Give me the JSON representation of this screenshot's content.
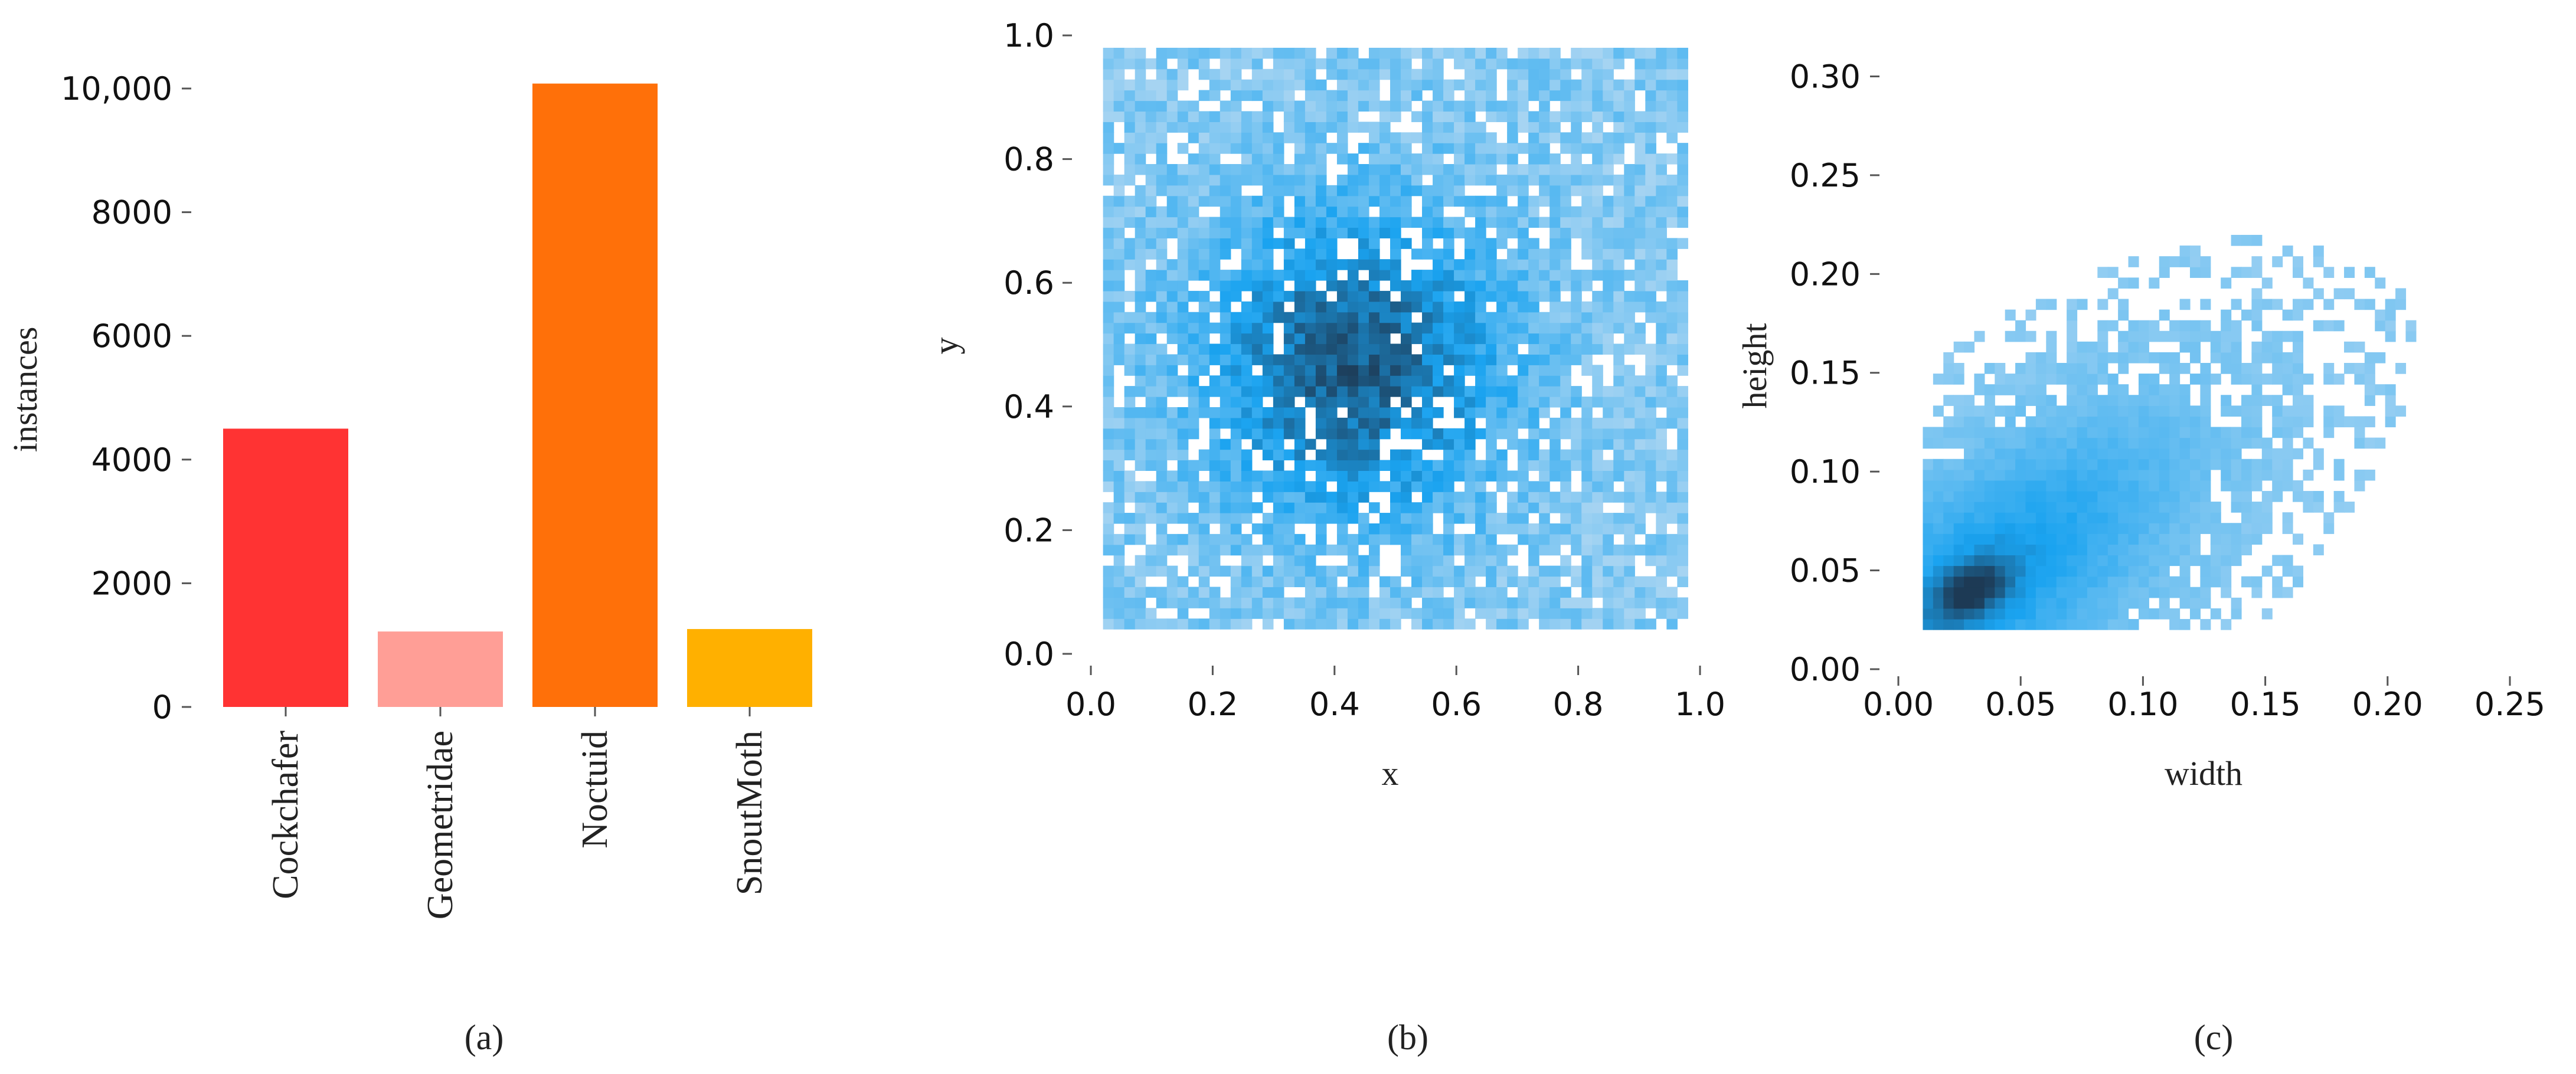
{
  "figure": {
    "captions": [
      "(a)",
      "(b)",
      "(c)"
    ]
  },
  "chart_data": [
    {
      "type": "bar",
      "categories": [
        "Cockchafer",
        "Geometridae",
        "Noctuid",
        "SnoutMoth"
      ],
      "values": [
        4500,
        1220,
        10080,
        1260
      ],
      "colors": [
        "#ff3333",
        "#ff9e96",
        "#ff7009",
        "#ffb000"
      ],
      "xlabel": "",
      "ylabel": "instances",
      "ylim": [
        0,
        10000
      ],
      "yticks": [
        0,
        2000,
        4000,
        6000,
        8000,
        10000
      ],
      "ytick_labels": [
        "0",
        "2000",
        "4000",
        "6000",
        "8000",
        "10,000"
      ],
      "grid": false
    },
    {
      "type": "heatmap",
      "subtype": "2d-histogram",
      "xlabel": "x",
      "ylabel": "y",
      "xlim": [
        0,
        1
      ],
      "ylim": [
        0,
        1
      ],
      "xticks": [
        0.0,
        0.2,
        0.4,
        0.6,
        0.8,
        1.0
      ],
      "xtick_labels": [
        "0.0",
        "0.2",
        "0.4",
        "0.6",
        "0.8",
        "1.0"
      ],
      "yticks": [
        0.0,
        0.2,
        0.4,
        0.6,
        0.8,
        1.0
      ],
      "ytick_labels": [
        "0.0",
        "0.2",
        "0.4",
        "0.6",
        "0.8",
        "1.0"
      ],
      "data_extent": {
        "x": [
          0.02,
          0.98
        ],
        "y": [
          0.04,
          0.98
        ]
      },
      "density_peak": {
        "x": 0.43,
        "y": 0.47
      },
      "colors": {
        "low": "#a6d4f2",
        "mid": "#1aa3f0",
        "high": "#1d3a55"
      },
      "grid": false
    },
    {
      "type": "heatmap",
      "subtype": "2d-histogram",
      "xlabel": "width",
      "ylabel": "height",
      "xlim": [
        0,
        0.25
      ],
      "ylim": [
        0,
        0.31
      ],
      "xticks": [
        0.0,
        0.05,
        0.1,
        0.15,
        0.2,
        0.25
      ],
      "xtick_labels": [
        "0.00",
        "0.05",
        "0.10",
        "0.15",
        "0.20",
        "0.25"
      ],
      "yticks": [
        0.0,
        0.05,
        0.1,
        0.15,
        0.2,
        0.25,
        0.3
      ],
      "ytick_labels": [
        "0.00",
        "0.05",
        "0.10",
        "0.15",
        "0.20",
        "0.25",
        "0.30"
      ],
      "density_peak": {
        "x": 0.03,
        "y": 0.04
      },
      "colors": {
        "low": "#a6d4f2",
        "mid": "#1aa3f0",
        "high": "#1d3a55"
      },
      "grid": false
    }
  ]
}
